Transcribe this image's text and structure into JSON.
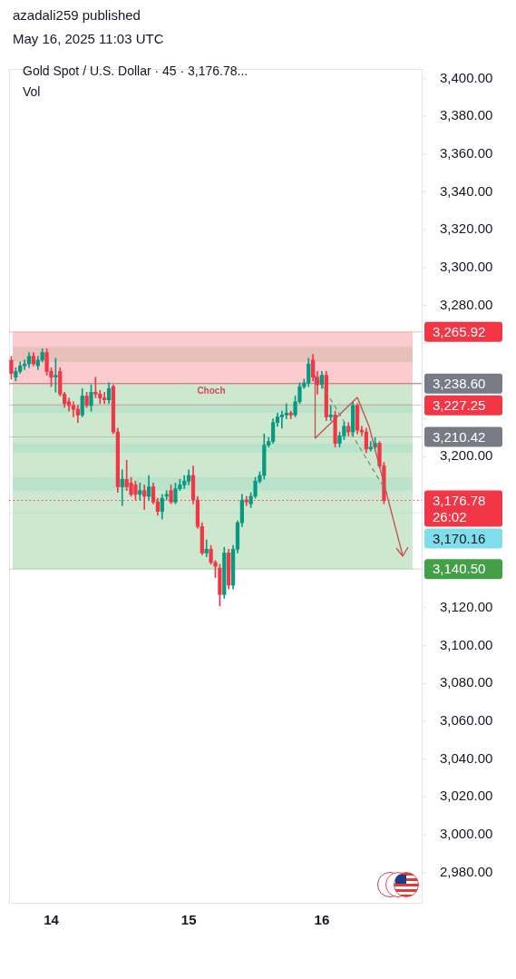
{
  "chart_data": {
    "type": "candlestick",
    "title": "Gold Spot / U.S. Dollar · 45 · 3,176.78...",
    "annotations": [
      "azadali259 published",
      "May 16, 2025 11:03 UTC",
      "Vol",
      "Choch"
    ],
    "categories": [
      null,
      null,
      null,
      null,
      null,
      null,
      null,
      null,
      null,
      "14",
      null,
      null,
      null,
      null,
      null,
      null,
      null,
      null,
      null,
      null,
      null,
      null,
      null,
      null,
      null,
      null,
      null,
      null,
      null,
      null,
      null,
      null,
      null,
      null,
      null,
      null,
      null,
      null,
      null,
      null,
      "15",
      null,
      null,
      null,
      null,
      null,
      null,
      null,
      null,
      null,
      null,
      null,
      null,
      null,
      null,
      null,
      null,
      null,
      null,
      null,
      null,
      null,
      null,
      null,
      null,
      null,
      null,
      null,
      null,
      null,
      "16",
      null,
      null,
      null,
      null,
      null,
      null,
      null,
      null,
      null,
      null,
      null,
      null,
      null,
      null,
      null,
      null,
      null,
      null,
      null,
      null,
      null,
      null
    ],
    "ohlc": [
      [
        3251,
        3253,
        3241,
        3244
      ],
      [
        3242,
        3247,
        3240,
        3245
      ],
      [
        3245,
        3250,
        3244,
        3248
      ],
      [
        3248,
        3251,
        3246,
        3249
      ],
      [
        3249,
        3255,
        3247,
        3253
      ],
      [
        3253,
        3255,
        3248,
        3249
      ],
      [
        3248,
        3253,
        3246,
        3251
      ],
      [
        3251,
        3257,
        3250,
        3255
      ],
      [
        3255,
        3257,
        3243,
        3245
      ],
      [
        3245,
        3247,
        3237,
        3242
      ],
      [
        3242,
        3252,
        3234,
        3243
      ],
      [
        3245,
        3247,
        3232,
        3233
      ],
      [
        3233,
        3234,
        3226,
        3228
      ],
      [
        3229,
        3231,
        3224,
        3227
      ],
      [
        3227,
        3229,
        3221,
        3225
      ],
      [
        3225,
        3227,
        3218,
        3222
      ],
      [
        3222,
        3236,
        3221,
        3232
      ],
      [
        3232,
        3234,
        3226,
        3227
      ],
      [
        3227,
        3238,
        3224,
        3234
      ],
      [
        3234,
        3242,
        3231,
        3233
      ],
      [
        3233,
        3235,
        3228,
        3231
      ],
      [
        3231,
        3234,
        3228,
        3230
      ],
      [
        3230,
        3239,
        3228,
        3236
      ],
      [
        3237,
        3238,
        3212,
        3213
      ],
      [
        3213,
        3215,
        3181,
        3184
      ],
      [
        3184,
        3193,
        3174,
        3188
      ],
      [
        3188,
        3198,
        3182,
        3184
      ],
      [
        3186,
        3189,
        3179,
        3180
      ],
      [
        3185,
        3187,
        3177,
        3180
      ],
      [
        3180,
        3186,
        3177,
        3182
      ],
      [
        3182,
        3185,
        3172,
        3179
      ],
      [
        3179,
        3190,
        3177,
        3184
      ],
      [
        3184,
        3186,
        3175,
        3176
      ],
      [
        3176,
        3178,
        3169,
        3171
      ],
      [
        3171,
        3180,
        3167,
        3178
      ],
      [
        3179,
        3182,
        3177,
        3180
      ],
      [
        3182,
        3185,
        3175,
        3176
      ],
      [
        3176,
        3186,
        3175,
        3183
      ],
      [
        3183,
        3188,
        3182,
        3185
      ],
      [
        3185,
        3190,
        3183,
        3187
      ],
      [
        3187,
        3193,
        3185,
        3190
      ],
      [
        3190,
        3195,
        3175,
        3177
      ],
      [
        3177,
        3179,
        3162,
        3163
      ],
      [
        3163,
        3165,
        3148,
        3149
      ],
      [
        3149,
        3156,
        3147,
        3151
      ],
      [
        3151,
        3153,
        3143,
        3144
      ],
      [
        3144,
        3145,
        3136,
        3142
      ],
      [
        3141,
        3143,
        3121,
        3127
      ],
      [
        3127,
        3152,
        3125,
        3149
      ],
      [
        3149,
        3151,
        3130,
        3132
      ],
      [
        3132,
        3153,
        3130,
        3151
      ],
      [
        3151,
        3166,
        3149,
        3165
      ],
      [
        3165,
        3180,
        3163,
        3177
      ],
      [
        3177,
        3179,
        3174,
        3176
      ],
      [
        3175,
        3181,
        3173,
        3179
      ],
      [
        3179,
        3189,
        3178,
        3187
      ],
      [
        3187,
        3192,
        3186,
        3190
      ],
      [
        3190,
        3212,
        3188,
        3206
      ],
      [
        3206,
        3210,
        3205,
        3208
      ],
      [
        3208,
        3220,
        3207,
        3218
      ],
      [
        3218,
        3223,
        3216,
        3221
      ],
      [
        3221,
        3224,
        3215,
        3222
      ],
      [
        3222,
        3228,
        3220,
        3223
      ],
      [
        3223,
        3224,
        3220,
        3222
      ],
      [
        3222,
        3232,
        3221,
        3229
      ],
      [
        3229,
        3239,
        3228,
        3237
      ],
      [
        3237,
        3241,
        3236,
        3239
      ],
      [
        3239,
        3252,
        3237,
        3249
      ],
      [
        3251,
        3254,
        3240,
        3242
      ],
      [
        3242,
        3245,
        3233,
        3238
      ],
      [
        3238,
        3245,
        3236,
        3243
      ],
      [
        3243,
        3245,
        3219,
        3221
      ],
      [
        3221,
        3227,
        3219,
        3222
      ],
      [
        3222,
        3224,
        3205,
        3207
      ],
      [
        3207,
        3213,
        3205,
        3211
      ],
      [
        3211,
        3218,
        3209,
        3216
      ],
      [
        3216,
        3218,
        3211,
        3213
      ],
      [
        3213,
        3229,
        3211,
        3227
      ],
      [
        3227,
        3228,
        3212,
        3214
      ],
      [
        3214,
        3216,
        3211,
        3213
      ],
      [
        3213,
        3215,
        3202,
        3204
      ],
      [
        3204,
        3208,
        3203,
        3205
      ],
      [
        3205,
        3210,
        3204,
        3207
      ],
      [
        3207,
        3208,
        3194,
        3195
      ],
      [
        3195,
        3197,
        3175,
        3176.78
      ],
      null,
      null,
      null,
      null,
      null,
      null,
      null,
      null
    ],
    "ylim": [
      2964,
      3405
    ],
    "yticks": [
      {
        "value": 2980,
        "label": "2,980.00"
      },
      {
        "value": 3000,
        "label": "3,000.00"
      },
      {
        "value": 3020,
        "label": "3,020.00"
      },
      {
        "value": 3040,
        "label": "3,040.00"
      },
      {
        "value": 3060,
        "label": "3,060.00"
      },
      {
        "value": 3080,
        "label": "3,080.00"
      },
      {
        "value": 3100,
        "label": "3,100.00"
      },
      {
        "value": 3120,
        "label": "3,120.00"
      },
      {
        "value": 3140,
        "label": null
      },
      {
        "value": 3160,
        "label": null
      },
      {
        "value": 3180,
        "label": null
      },
      {
        "value": 3200,
        "label": "3,200.00"
      },
      {
        "value": 3220,
        "label": null
      },
      {
        "value": 3240,
        "label": null
      },
      {
        "value": 3260,
        "label": null
      },
      {
        "value": 3280,
        "label": "3,280.00"
      },
      {
        "value": 3300,
        "label": "3,300.00"
      },
      {
        "value": 3320,
        "label": "3,320.00"
      },
      {
        "value": 3340,
        "label": "3,340.00"
      },
      {
        "value": 3360,
        "label": "3,360.00"
      },
      {
        "value": 3380,
        "label": "3,380.00"
      },
      {
        "value": 3400,
        "label": "3,400.00"
      }
    ],
    "bands": [
      {
        "axis": "y",
        "from": 3250,
        "to": 3258,
        "color": "#a5d6a7"
      },
      {
        "axis": "y",
        "from": 3223,
        "to": 3228,
        "color": "#b2ebf2"
      },
      {
        "axis": "y",
        "from": 3202,
        "to": 3207,
        "color": "#b2ebf2"
      },
      {
        "axis": "y",
        "from": 3182,
        "to": 3189,
        "color": "#b2ebf2"
      },
      {
        "axis": "y",
        "from": 3238.6,
        "to": 3265.92,
        "color": "#f7a1a8"
      },
      {
        "axis": "y",
        "from": 3140.5,
        "to": 3238.6,
        "color": "#a5d6a7"
      }
    ],
    "ref_lines": [
      {
        "axis": "y",
        "value": 3238.6,
        "label": null,
        "color": "#e57373",
        "line_style": "solid"
      },
      {
        "axis": "y",
        "value": 3176.78,
        "label": "3,176.78\n26:02",
        "color": "#f23645",
        "line_style": "dotted"
      },
      {
        "axis": "y",
        "value": 3265.92,
        "label": "3,265.92",
        "color": "#f23645"
      },
      {
        "axis": "y",
        "value": 3238.6,
        "label": "3,238.60",
        "color": "#787b86"
      },
      {
        "axis": "y",
        "value": 3227.25,
        "label": "3,227.25",
        "color": "#f23645"
      },
      {
        "axis": "y",
        "value": 3210.42,
        "label": "3,210.42",
        "color": "#787b86"
      },
      {
        "axis": "y",
        "value": 3170.16,
        "label": "3,170.16",
        "color": "#80deea"
      },
      {
        "axis": "y",
        "value": 3140.5,
        "label": "3,140.50",
        "color": "#43a047"
      }
    ]
  }
}
